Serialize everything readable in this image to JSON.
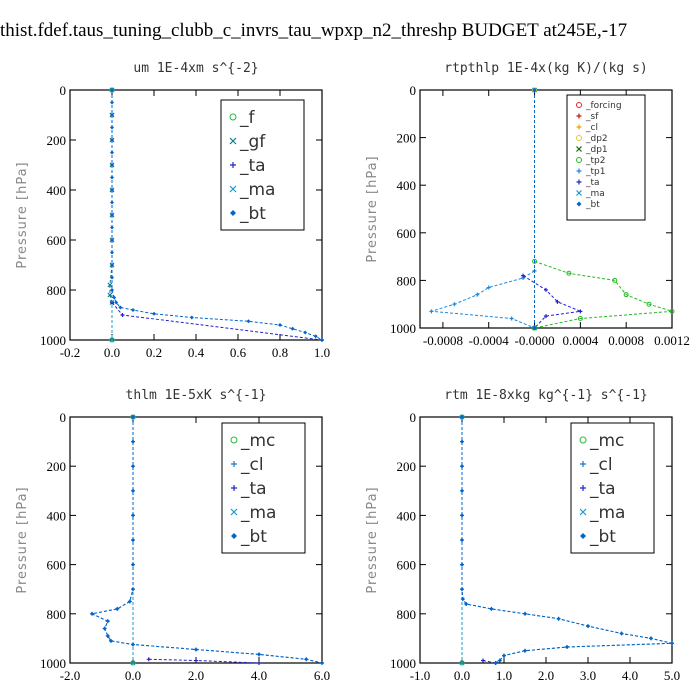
{
  "page": {
    "title": "thist.fdef.taus_tuning_clubb_c_invrs_tau_wpxp_n2_threshp  BUDGET at245E,-17"
  },
  "chart_data": [
    {
      "type": "line",
      "title": "um   1E-4xm s^{-2}",
      "ylabel": "Pressure [hPa]",
      "xlim": [
        -0.2,
        1.0
      ],
      "ylim": [
        1000,
        0
      ],
      "xticks": [
        -0.2,
        0.0,
        0.2,
        0.4,
        0.6,
        0.8,
        1.0
      ],
      "xtick_labels": [
        "-0.2",
        "0.0",
        "0.2",
        "0.4",
        "0.6",
        "0.8",
        "1.0"
      ],
      "yticks": [
        0,
        200,
        400,
        600,
        800,
        1000
      ],
      "ytick_labels": [
        "0",
        "200",
        "400",
        "600",
        "800",
        "1000"
      ],
      "legend_position": "top-right",
      "series": [
        {
          "name": "_f",
          "color": "#22bb44",
          "y": [
            0,
            1000
          ],
          "x": [
            0,
            0
          ]
        },
        {
          "name": "_gf",
          "color": "#0b7a8a",
          "y": [
            0,
            100,
            200,
            300,
            400,
            500,
            600,
            700,
            780,
            820,
            850
          ],
          "x": [
            0,
            0,
            0,
            0,
            0,
            0,
            0,
            0,
            -0.01,
            -0.01,
            0
          ]
        },
        {
          "name": "_ta",
          "color": "#2222cc",
          "y": [
            850,
            900,
            1000
          ],
          "x": [
            0,
            0.05,
            1.0
          ]
        },
        {
          "name": "_ma",
          "color": "#1a99cc",
          "y": [
            0,
            1000
          ],
          "x": [
            0,
            0
          ]
        },
        {
          "name": "_bt",
          "color": "#0066cc",
          "y": [
            0,
            50,
            100,
            150,
            200,
            250,
            300,
            350,
            400,
            450,
            500,
            550,
            600,
            650,
            700,
            750,
            800,
            830,
            850,
            870,
            880,
            895,
            910,
            925,
            940,
            955,
            970,
            985,
            1000
          ],
          "x": [
            0,
            0,
            0,
            0,
            0,
            0,
            0,
            0,
            0,
            0,
            0,
            0,
            0,
            0,
            0,
            0,
            0,
            0.01,
            0.02,
            0.04,
            0.1,
            0.2,
            0.38,
            0.65,
            0.8,
            0.86,
            0.92,
            0.97,
            1.0
          ]
        }
      ]
    },
    {
      "type": "line",
      "title": "rtpthlp   1E-4x(kg K)/(kg s)",
      "ylabel": "Pressure [hPa]",
      "xlim": [
        -0.001,
        0.0012
      ],
      "ylim": [
        1000,
        0
      ],
      "xticks": [
        -0.0008,
        -0.0004,
        0.0,
        0.0004,
        0.0008,
        0.0012
      ],
      "xtick_labels": [
        "-0.0008",
        "-0.0004",
        "-0.0000",
        "0.0004",
        "0.0008",
        "0.0012"
      ],
      "yticks": [
        0,
        200,
        400,
        600,
        800,
        1000
      ],
      "ytick_labels": [
        "0",
        "200",
        "400",
        "600",
        "800",
        "1000"
      ],
      "legend_position": "top-right",
      "series": [
        {
          "name": "_forcing",
          "color": "#dd2222",
          "y": [
            0,
            1000
          ],
          "x": [
            0,
            0
          ]
        },
        {
          "name": "_sf",
          "color": "#cc1111",
          "y": [
            0,
            1000
          ],
          "x": [
            0,
            0
          ]
        },
        {
          "name": "_cl",
          "color": "#ddaa00",
          "y": [
            0,
            1000
          ],
          "x": [
            0,
            0
          ]
        },
        {
          "name": "_dp2",
          "color": "#ddcc33",
          "y": [
            0,
            1000
          ],
          "x": [
            0,
            0
          ]
        },
        {
          "name": "_dp1",
          "color": "#116611",
          "y": [
            0,
            1000
          ],
          "x": [
            0,
            0
          ]
        },
        {
          "name": "_tp2",
          "color": "#22bb22",
          "y": [
            720,
            770,
            800,
            860,
            900,
            930,
            960,
            1000
          ],
          "x": [
            0,
            0.0003,
            0.0007,
            0.0008,
            0.001,
            0.0012,
            0.0004,
            0
          ]
        },
        {
          "name": "_tp1",
          "color": "#1a88dd",
          "y": [
            760,
            790,
            830,
            860,
            900,
            930,
            960,
            1000
          ],
          "x": [
            0,
            -0.0001,
            -0.0004,
            -0.0005,
            -0.0007,
            -0.0009,
            -0.0002,
            0
          ]
        },
        {
          "name": "_ta",
          "color": "#2222cc",
          "y": [
            780,
            840,
            890,
            930,
            950,
            1000
          ],
          "x": [
            -0.0001,
            0.0001,
            0.0002,
            0.0004,
            0.0001,
            0
          ]
        },
        {
          "name": "_ma",
          "color": "#1a99cc",
          "y": [
            0,
            1000
          ],
          "x": [
            0,
            0
          ]
        },
        {
          "name": "_bt",
          "color": "#0066cc",
          "y": [
            0,
            1000
          ],
          "x": [
            0,
            0
          ]
        }
      ]
    },
    {
      "type": "line",
      "title": "thlm   1E-5xK s^{-1}",
      "ylabel": "Pressure [hPa]",
      "xlim": [
        -2.0,
        6.0
      ],
      "ylim": [
        1000,
        0
      ],
      "xticks": [
        -2.0,
        0.0,
        2.0,
        4.0,
        6.0
      ],
      "xtick_labels": [
        "-2.0",
        "0.0",
        "2.0",
        "4.0",
        "6.0"
      ],
      "yticks": [
        0,
        200,
        400,
        600,
        800,
        1000
      ],
      "ytick_labels": [
        "0",
        "200",
        "400",
        "600",
        "800",
        "1000"
      ],
      "legend_position": "top-right",
      "series": [
        {
          "name": "_mc",
          "color": "#22bb44",
          "y": [
            0,
            1000
          ],
          "x": [
            0,
            0
          ]
        },
        {
          "name": "_cl",
          "color": "#1a77cc",
          "y": [
            0,
            100,
            200,
            300,
            400,
            500,
            600,
            700,
            750,
            780,
            800,
            830,
            860,
            890,
            910,
            925,
            945,
            965,
            985,
            1000
          ],
          "x": [
            0,
            0,
            0,
            0,
            0,
            0,
            0,
            0,
            -0.1,
            -0.5,
            -1.3,
            -0.8,
            -0.9,
            -0.8,
            -0.7,
            0,
            2.0,
            4.0,
            5.5,
            6.0
          ]
        },
        {
          "name": "_ta",
          "color": "#2222cc",
          "y": [
            985,
            990,
            1000
          ],
          "x": [
            0.5,
            2.0,
            4.0
          ]
        },
        {
          "name": "_ma",
          "color": "#1a99cc",
          "y": [
            0,
            1000
          ],
          "x": [
            0,
            0
          ]
        },
        {
          "name": "_bt",
          "color": "#0066cc",
          "y": [
            0,
            100,
            200,
            300,
            400,
            500,
            600,
            700,
            750,
            780,
            800,
            830,
            860,
            890,
            910,
            925,
            945,
            965,
            985,
            1000
          ],
          "x": [
            0,
            0,
            0,
            0,
            0,
            0,
            0,
            0,
            -0.1,
            -0.5,
            -1.3,
            -0.8,
            -0.9,
            -0.8,
            -0.7,
            0,
            2.0,
            4.0,
            5.5,
            6.0
          ]
        }
      ]
    },
    {
      "type": "line",
      "title": "rtm   1E-8xkg kg^{-1} s^{-1}",
      "ylabel": "Pressure [hPa]",
      "xlim": [
        -1.0,
        5.0
      ],
      "ylim": [
        1000,
        0
      ],
      "xticks": [
        -1.0,
        0.0,
        1.0,
        2.0,
        3.0,
        4.0,
        5.0
      ],
      "xtick_labels": [
        "-1.0",
        "0.0",
        "1.0",
        "2.0",
        "3.0",
        "4.0",
        "5.0"
      ],
      "yticks": [
        0,
        200,
        400,
        600,
        800,
        1000
      ],
      "ytick_labels": [
        "0",
        "200",
        "400",
        "600",
        "800",
        "1000"
      ],
      "legend_position": "top-right",
      "series": [
        {
          "name": "_mc",
          "color": "#22bb44",
          "y": [
            0,
            1000
          ],
          "x": [
            0,
            0
          ]
        },
        {
          "name": "_cl",
          "color": "#1a77cc",
          "y": [
            0,
            100,
            200,
            300,
            400,
            500,
            600,
            700,
            740,
            760,
            780,
            800,
            820,
            850,
            880,
            900,
            920,
            935,
            950,
            970,
            990,
            1000
          ],
          "x": [
            0,
            0,
            0,
            0,
            0,
            0,
            0,
            0,
            0.02,
            0.1,
            0.7,
            1.5,
            2.3,
            3.0,
            3.8,
            4.5,
            5.0,
            2.5,
            1.5,
            1.0,
            0.9,
            0.8
          ]
        },
        {
          "name": "_ta",
          "color": "#2222cc",
          "y": [
            990,
            1000
          ],
          "x": [
            0.5,
            0.8
          ]
        },
        {
          "name": "_ma",
          "color": "#1a99cc",
          "y": [
            0,
            1000
          ],
          "x": [
            0,
            0
          ]
        },
        {
          "name": "_bt",
          "color": "#0066cc",
          "y": [
            0,
            100,
            200,
            300,
            400,
            500,
            600,
            700,
            740,
            760,
            780,
            800,
            820,
            850,
            880,
            900,
            920,
            935,
            950,
            970,
            990,
            1000
          ],
          "x": [
            0,
            0,
            0,
            0,
            0,
            0,
            0,
            0,
            0.02,
            0.1,
            0.7,
            1.5,
            2.3,
            3.0,
            3.8,
            4.5,
            5.0,
            2.5,
            1.5,
            1.0,
            0.9,
            0.8
          ]
        }
      ]
    }
  ]
}
